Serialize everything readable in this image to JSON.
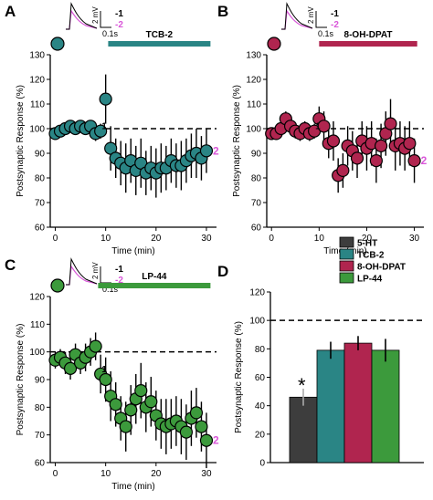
{
  "chart_data": [
    {
      "panel": "A",
      "type": "scatter",
      "bar_label": "TCB-2",
      "color": "#2a8585",
      "xlabel": "Time (min)",
      "ylabel": "Postsynaptic Response (%)",
      "xlim": [
        -1,
        32
      ],
      "ylim": [
        60,
        130
      ],
      "xticks": [
        0,
        10,
        20,
        30
      ],
      "yticks": [
        60,
        70,
        80,
        90,
        100,
        110,
        120,
        130
      ],
      "marker_1": "1",
      "marker_2": "2",
      "x": [
        0,
        1,
        2,
        3,
        4,
        5,
        6,
        7,
        8,
        9,
        10,
        11,
        12,
        13,
        14,
        15,
        16,
        17,
        18,
        19,
        20,
        21,
        22,
        23,
        24,
        25,
        26,
        27,
        28,
        29,
        30
      ],
      "y": [
        98,
        99,
        100,
        101,
        100,
        101,
        100,
        101,
        98,
        99,
        112,
        92,
        88,
        86,
        84,
        87,
        83,
        86,
        82,
        84,
        82,
        84,
        84,
        87,
        85,
        85,
        87,
        89,
        90,
        88,
        91
      ],
      "err": [
        2,
        2,
        2,
        2,
        2,
        2,
        2,
        2,
        3,
        3,
        10,
        9,
        8,
        9,
        10,
        9,
        10,
        10,
        9,
        9,
        10,
        10,
        9,
        9,
        9,
        10,
        9,
        9,
        10,
        9,
        9
      ]
    },
    {
      "panel": "B",
      "type": "scatter",
      "bar_label": "8-OH-DPAT",
      "color": "#b0254f",
      "xlabel": "Time (min)",
      "ylabel": "Postsynaptic Response (%)",
      "xlim": [
        -1,
        32
      ],
      "ylim": [
        60,
        130
      ],
      "xticks": [
        0,
        10,
        20,
        30
      ],
      "yticks": [
        60,
        70,
        80,
        90,
        100,
        110,
        120,
        130
      ],
      "marker_1": "1",
      "marker_2": "2",
      "x": [
        0,
        1,
        2,
        3,
        4,
        5,
        6,
        7,
        8,
        9,
        10,
        11,
        12,
        13,
        14,
        15,
        16,
        17,
        18,
        19,
        20,
        21,
        22,
        23,
        24,
        25,
        26,
        27,
        28,
        29,
        30
      ],
      "y": [
        98,
        98,
        100,
        104,
        101,
        99,
        98,
        100,
        98,
        99,
        104,
        101,
        94,
        95,
        81,
        83,
        93,
        91,
        88,
        95,
        92,
        94,
        87,
        93,
        98,
        102,
        93,
        94,
        92,
        94,
        87
      ],
      "err": [
        2,
        2,
        2,
        3,
        3,
        3,
        3,
        3,
        3,
        3,
        5,
        6,
        6,
        8,
        7,
        7,
        8,
        8,
        8,
        8,
        9,
        9,
        9,
        9,
        9,
        10,
        10,
        9,
        9,
        9,
        9
      ]
    },
    {
      "panel": "C",
      "type": "scatter",
      "bar_label": "LP-44",
      "color": "#3c9a3c",
      "xlabel": "Time (min)",
      "ylabel": "Postsynaptic Response (%)",
      "xlim": [
        -1,
        32
      ],
      "ylim": [
        60,
        120
      ],
      "xticks": [
        0,
        10,
        20,
        30
      ],
      "yticks": [
        60,
        70,
        80,
        90,
        100,
        110,
        120
      ],
      "marker_1": "1",
      "marker_2": "2",
      "x": [
        0,
        1,
        2,
        3,
        4,
        5,
        6,
        7,
        8,
        9,
        10,
        11,
        12,
        13,
        14,
        15,
        16,
        17,
        18,
        19,
        20,
        21,
        22,
        23,
        24,
        25,
        26,
        27,
        28,
        29,
        30
      ],
      "y": [
        97,
        98,
        96,
        94,
        99,
        96,
        98,
        100,
        102,
        92,
        90,
        84,
        81,
        76,
        73,
        79,
        83,
        86,
        80,
        82,
        77,
        74,
        73,
        74,
        75,
        73,
        71,
        76,
        78,
        73,
        68
      ],
      "err": [
        3,
        3,
        4,
        4,
        4,
        4,
        5,
        5,
        5,
        7,
        8,
        9,
        8,
        8,
        9,
        9,
        9,
        10,
        9,
        9,
        9,
        9,
        10,
        9,
        9,
        10,
        10,
        10,
        9,
        9,
        10
      ]
    },
    {
      "panel": "D",
      "type": "bar",
      "ylabel": "Postsynaptic Response (%)",
      "ylim": [
        0,
        120
      ],
      "yticks": [
        0,
        20,
        40,
        60,
        80,
        100,
        120
      ],
      "categories": [
        "5-HT",
        "TCB-2",
        "8-OH-DPAT",
        "LP-44"
      ],
      "values": [
        46,
        79,
        84,
        79
      ],
      "err": [
        6,
        6,
        5,
        8
      ],
      "colors": [
        "#3d3d3d",
        "#2a8585",
        "#b0254f",
        "#3c9a3c"
      ],
      "significance": "*",
      "reference_line": 100
    }
  ],
  "insets": {
    "scale_y": "2 mV",
    "scale_x": "0.1s",
    "label_1": "-1",
    "label_2": "-2",
    "color_2": "#d957d9"
  },
  "panel_letters": [
    "A",
    "B",
    "C",
    "D"
  ]
}
